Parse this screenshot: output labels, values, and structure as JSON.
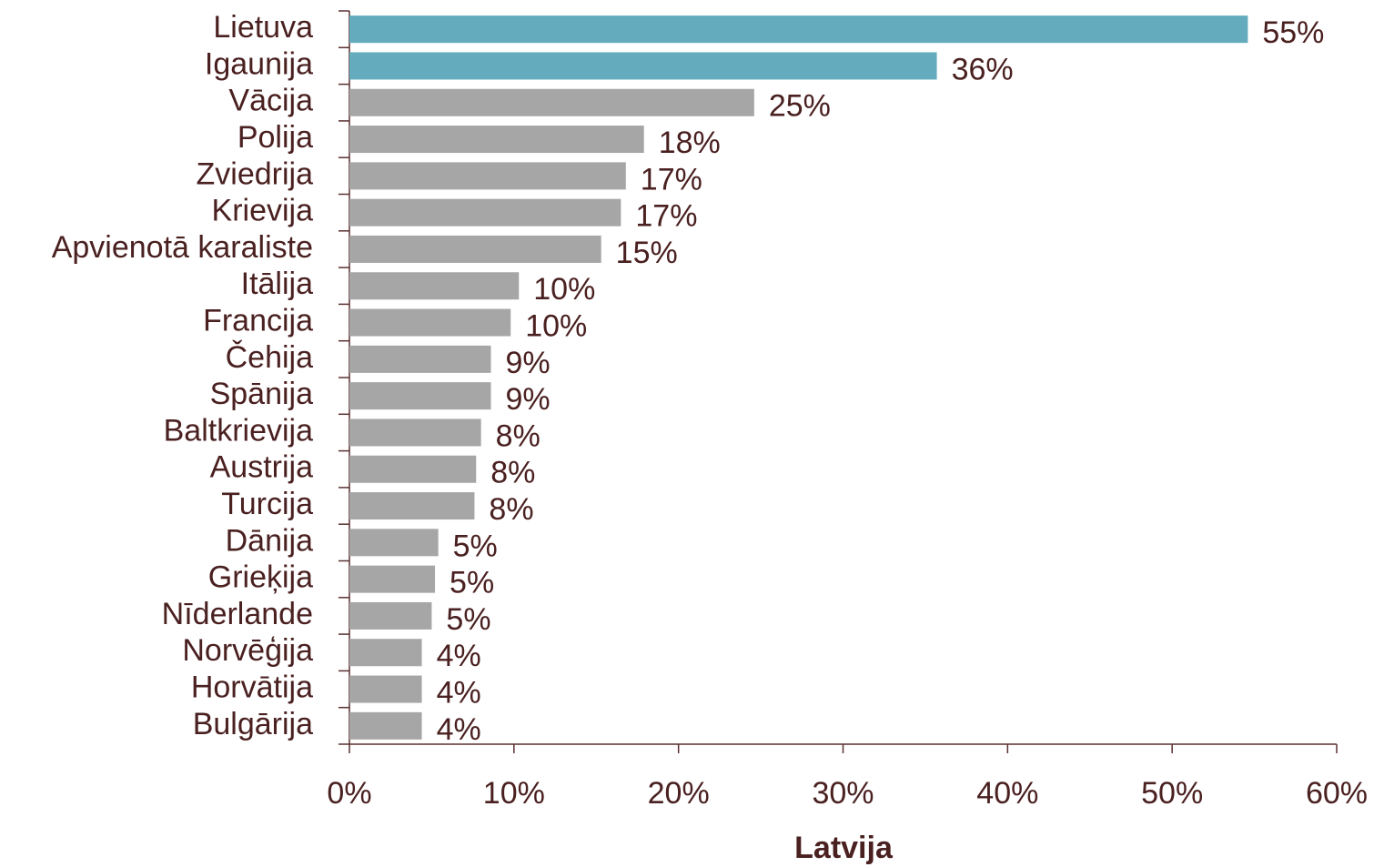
{
  "chart_data": {
    "type": "bar",
    "orientation": "horizontal",
    "x_label": "Latvija",
    "categories": [
      "Lietuva",
      "Igaunija",
      "Vācija",
      "Polija",
      "Zviedrija",
      "Krievija",
      "Apvienotā karaliste",
      "Itālija",
      "Francija",
      "Čehija",
      "Spānija",
      "Baltkrievija",
      "Austrija",
      "Turcija",
      "Dānija",
      "Grieķija",
      "Nīderlande",
      "Norvēģija",
      "Horvātija",
      "Bulgārija"
    ],
    "values": [
      54.6,
      35.7,
      24.6,
      17.9,
      16.8,
      16.5,
      15.3,
      10.3,
      9.8,
      8.6,
      8.6,
      8.0,
      7.7,
      7.6,
      5.4,
      5.2,
      5.0,
      4.4,
      4.4,
      4.4
    ],
    "value_labels": [
      "55%",
      "36%",
      "25%",
      "18%",
      "17%",
      "17%",
      "15%",
      "10%",
      "10%",
      "9%",
      "9%",
      "8%",
      "8%",
      "8%",
      "5%",
      "5%",
      "5%",
      "4%",
      "4%",
      "4%"
    ],
    "colors": [
      "#63abbd",
      "#63abbd",
      "#a6a6a6",
      "#a6a6a6",
      "#a6a6a6",
      "#a6a6a6",
      "#a6a6a6",
      "#a6a6a6",
      "#a6a6a6",
      "#a6a6a6",
      "#a6a6a6",
      "#a6a6a6",
      "#a6a6a6",
      "#a6a6a6",
      "#a6a6a6",
      "#a6a6a6",
      "#a6a6a6",
      "#a6a6a6",
      "#a6a6a6",
      "#a6a6a6"
    ],
    "xlim": [
      0,
      60
    ],
    "xticks": [
      {
        "value": 0,
        "label": "0%"
      },
      {
        "value": 10,
        "label": "10%"
      },
      {
        "value": 20,
        "label": "20%"
      },
      {
        "value": 30,
        "label": "30%"
      },
      {
        "value": 40,
        "label": "40%"
      },
      {
        "value": 50,
        "label": "50%"
      },
      {
        "value": 60,
        "label": "60%"
      }
    ],
    "grid": false
  }
}
